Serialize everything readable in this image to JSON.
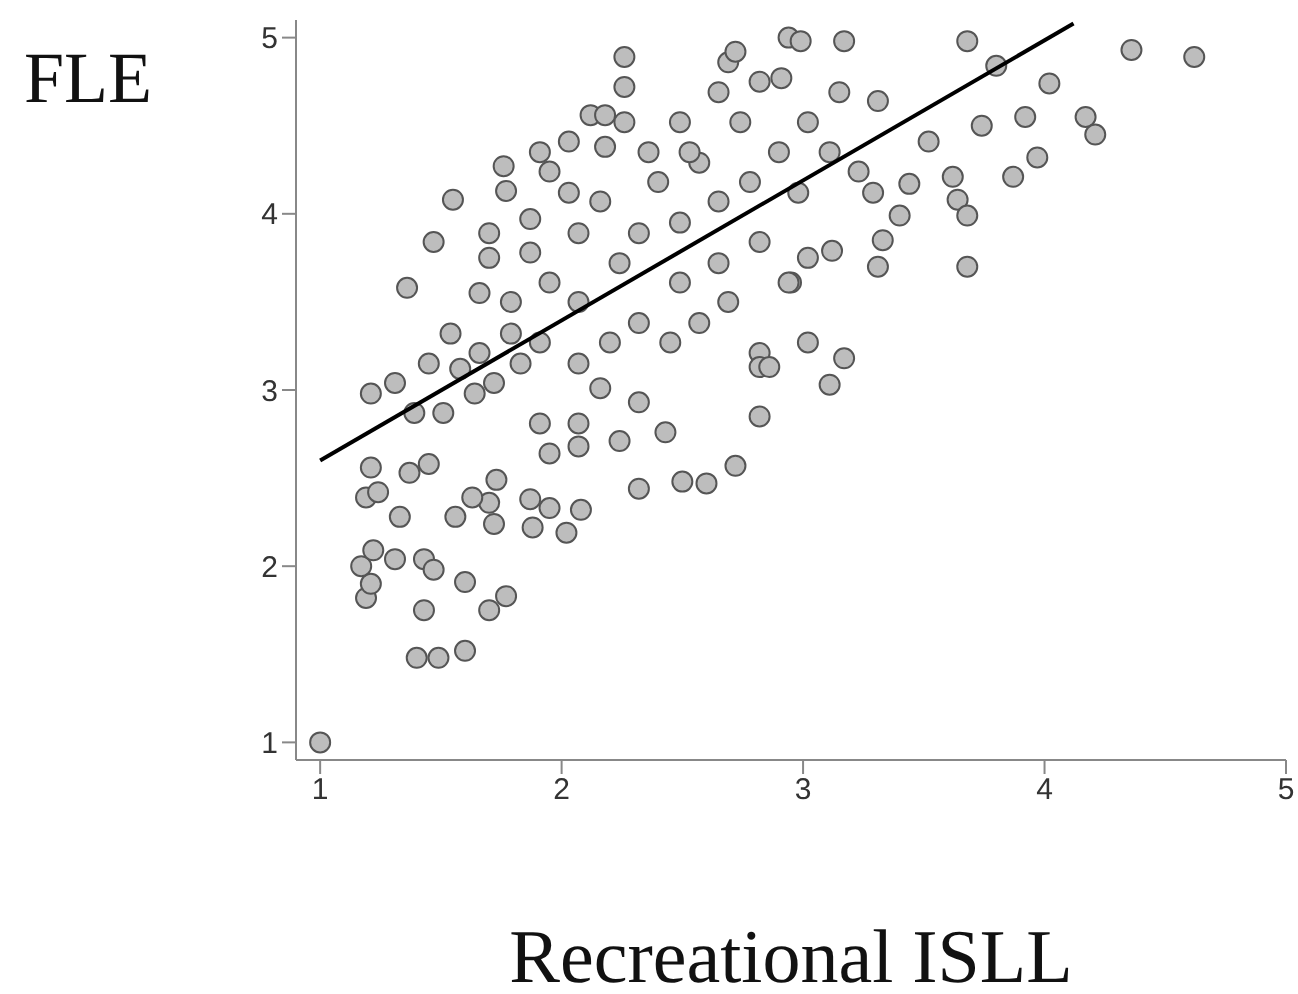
{
  "chart_data": {
    "type": "scatter",
    "xlabel": "Recreational ISLL",
    "ylabel": "FLE",
    "xlim": [
      0.9,
      5.0
    ],
    "ylim": [
      0.9,
      5.1
    ],
    "xticks": [
      1,
      2,
      3,
      4,
      5
    ],
    "yticks": [
      1,
      2,
      3,
      4,
      5
    ],
    "grid": false,
    "legend": false,
    "series": [
      {
        "marker": "circle",
        "color": "#bdbdbd",
        "x": [
          1.0,
          1.4,
          1.49,
          1.6,
          1.43,
          1.7,
          1.77,
          1.19,
          1.21,
          1.17,
          1.31,
          1.43,
          1.47,
          1.6,
          1.22,
          1.33,
          1.19,
          1.24,
          1.56,
          1.7,
          1.72,
          1.88,
          1.87,
          1.95,
          2.08,
          2.02,
          1.63,
          1.21,
          1.37,
          1.45,
          1.73,
          1.95,
          2.07,
          2.32,
          2.5,
          2.6,
          2.72,
          2.24,
          1.21,
          1.31,
          1.39,
          1.51,
          1.64,
          1.45,
          1.58,
          1.72,
          1.83,
          1.91,
          2.07,
          2.16,
          2.32,
          2.43,
          2.82,
          2.82,
          2.82,
          3.68,
          3.31,
          3.11,
          3.17,
          3.02,
          2.86,
          2.94,
          2.69,
          2.26,
          2.99,
          3.17,
          3.68,
          4.36,
          4.62,
          4.02,
          3.8,
          4.17,
          4.21,
          3.92,
          3.97,
          3.87,
          3.62,
          3.64,
          3.68,
          3.74,
          3.4,
          3.33,
          3.52,
          3.44,
          3.29,
          3.12,
          3.02,
          2.95,
          1.55,
          1.47,
          1.36,
          1.76,
          1.77,
          1.91,
          1.95,
          2.03,
          2.12,
          2.18,
          2.26,
          2.26,
          2.18,
          2.65,
          2.72,
          2.82,
          2.91,
          2.49,
          2.57,
          2.4,
          2.16,
          2.07,
          1.87,
          1.7,
          1.66,
          1.79,
          1.95,
          2.07,
          2.24,
          2.32,
          2.49,
          2.65,
          2.78,
          2.9,
          3.02,
          3.15,
          2.98,
          2.82,
          2.65,
          2.49,
          2.32,
          2.2,
          2.07,
          1.91,
          1.79,
          1.66,
          1.54,
          2.45,
          2.57,
          2.69,
          2.94,
          2.74,
          2.53,
          2.36,
          2.03,
          3.11,
          3.31,
          3.23,
          1.7,
          1.87
        ],
        "values": [
          1.0,
          1.48,
          1.48,
          1.52,
          1.75,
          1.75,
          1.83,
          1.82,
          1.9,
          2.0,
          2.04,
          2.04,
          1.98,
          1.91,
          2.09,
          2.28,
          2.39,
          2.42,
          2.28,
          2.36,
          2.24,
          2.22,
          2.38,
          2.33,
          2.32,
          2.19,
          2.39,
          2.56,
          2.53,
          2.58,
          2.49,
          2.64,
          2.68,
          2.44,
          2.48,
          2.47,
          2.57,
          2.71,
          2.98,
          3.04,
          2.87,
          2.87,
          2.98,
          3.15,
          3.12,
          3.04,
          3.15,
          2.81,
          2.81,
          3.01,
          2.93,
          2.76,
          3.21,
          2.85,
          3.13,
          3.7,
          3.7,
          3.03,
          3.18,
          3.27,
          3.13,
          5.0,
          4.86,
          4.89,
          4.98,
          4.98,
          4.98,
          4.93,
          4.89,
          4.74,
          4.84,
          4.55,
          4.45,
          4.55,
          4.32,
          4.21,
          4.21,
          4.08,
          3.99,
          4.5,
          3.99,
          3.85,
          4.41,
          4.17,
          4.12,
          3.79,
          3.75,
          3.61,
          4.08,
          3.84,
          3.58,
          4.27,
          4.13,
          4.35,
          4.24,
          4.41,
          4.56,
          4.56,
          4.52,
          4.72,
          4.38,
          4.69,
          4.92,
          4.75,
          4.77,
          4.52,
          4.29,
          4.18,
          4.07,
          3.89,
          3.78,
          3.75,
          3.55,
          3.5,
          3.61,
          3.5,
          3.72,
          3.89,
          3.95,
          4.07,
          4.18,
          4.35,
          4.52,
          4.69,
          4.12,
          3.84,
          3.72,
          3.61,
          3.38,
          3.27,
          3.15,
          3.27,
          3.32,
          3.21,
          3.32,
          3.27,
          3.38,
          3.5,
          3.61,
          4.52,
          4.35,
          4.35,
          4.12,
          4.35,
          4.64,
          4.24,
          3.89,
          3.97
        ]
      },
      {
        "type": "line",
        "marker": "none",
        "color": "#000000",
        "x": [
          1.0,
          4.12
        ],
        "values": [
          2.6,
          5.08
        ]
      }
    ]
  }
}
